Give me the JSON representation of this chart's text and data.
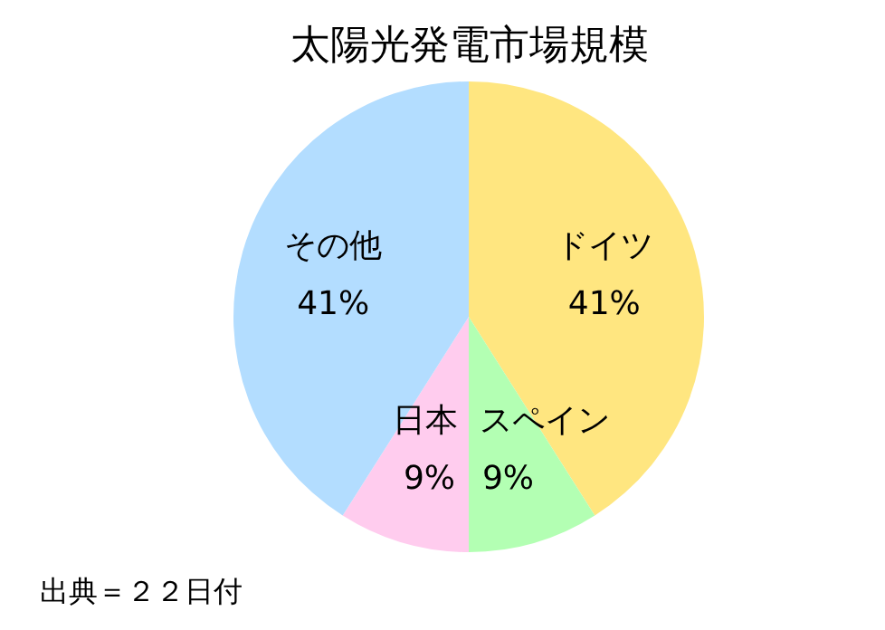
{
  "chart_data": {
    "type": "pie",
    "title": "太陽光発電市場規模",
    "categories": [
      "ドイツ",
      "スペイン",
      "日本",
      "その他"
    ],
    "values": [
      41,
      9,
      9,
      41
    ],
    "value_labels": [
      "41%",
      "9%",
      "9%",
      "41%"
    ],
    "colors": [
      "#ffe680",
      "#b3ffb3",
      "#ffccee",
      "#b3ddff"
    ],
    "annotations": [
      "出典＝２２日付"
    ]
  }
}
